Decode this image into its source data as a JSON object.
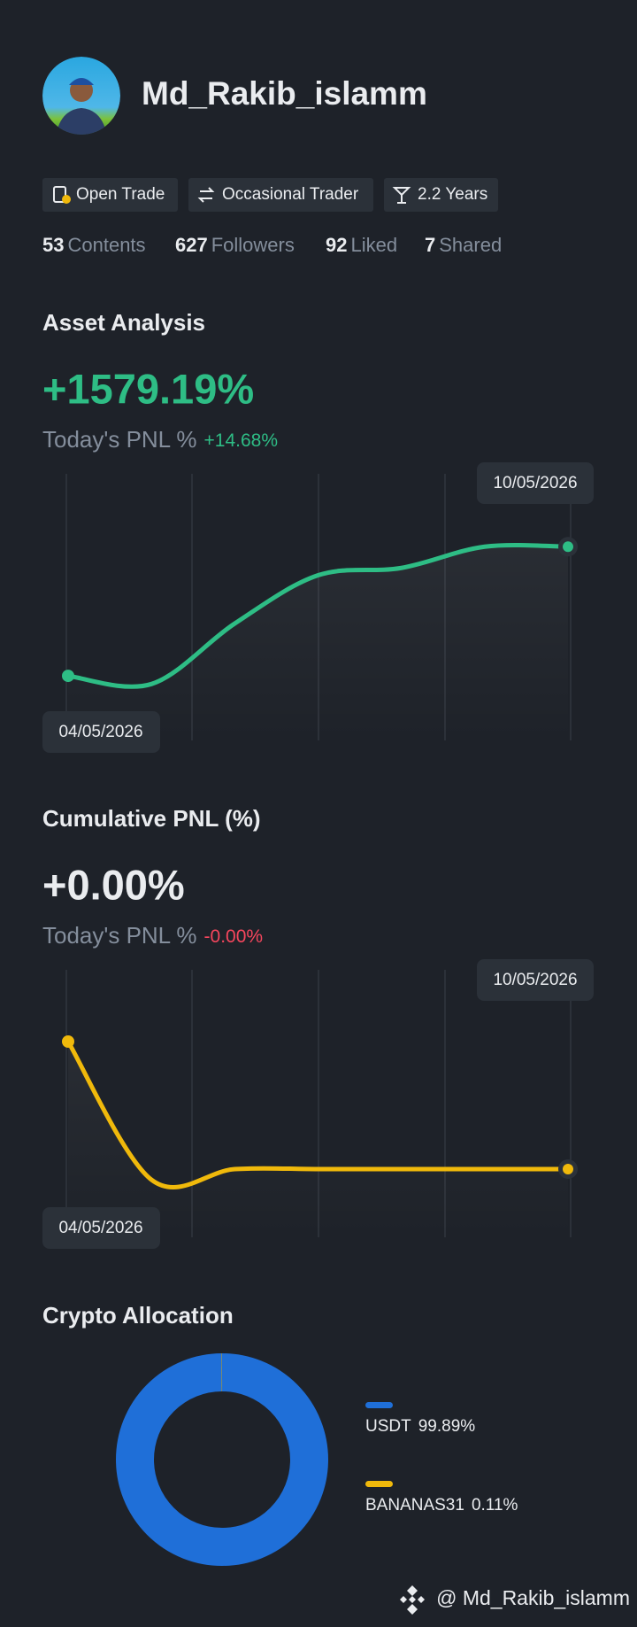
{
  "profile": {
    "name": "Md_Rakib_islamm",
    "tags": [
      "Open Trade",
      "Occasional Trader",
      "2.2 Years"
    ],
    "stats": [
      {
        "value": 53,
        "label": "Contents"
      },
      {
        "value": 627,
        "label": "Followers"
      },
      {
        "value": 92,
        "label": "Liked"
      },
      {
        "value": 7,
        "label": "Shared"
      }
    ]
  },
  "asset_analysis": {
    "title": "Asset Analysis",
    "value": "+1579.19%",
    "pnl_label": "Today's PNL %",
    "pnl_value": "+14.68%",
    "chart": {
      "type": "line",
      "dates": [
        "04/05/2026",
        null,
        null,
        null,
        null,
        null,
        "10/05/2026"
      ],
      "values": [
        0,
        -100,
        640,
        1230,
        1320,
        1580,
        1579.19
      ],
      "ylim": [
        -400,
        2200
      ],
      "color": "#2ebd85"
    }
  },
  "cumulative_pnl": {
    "title": "Cumulative PNL (%)",
    "value": "+0.00%",
    "pnl_label": "Today's PNL %",
    "pnl_value": "-0.00%",
    "chart": {
      "type": "line",
      "dates": [
        "04/05/2026",
        null,
        null,
        null,
        null,
        null,
        "10/05/2026"
      ],
      "values": [
        1.2,
        -0.1,
        0,
        0,
        0,
        0,
        0
      ],
      "ylim": [
        -0.5,
        1.5
      ],
      "color": "#f0b90b"
    }
  },
  "crypto_allocation": {
    "title": "Crypto Allocation",
    "type": "pie",
    "categories": [
      "USDT",
      "BANANAS31"
    ],
    "values": [
      99.89,
      0.11
    ],
    "value_labels": [
      "99.89%",
      "0.11%"
    ],
    "colors": [
      "#1f6fd8",
      "#f0b90b"
    ]
  },
  "footer": {
    "handle": "@ Md_Rakib_islamm"
  }
}
